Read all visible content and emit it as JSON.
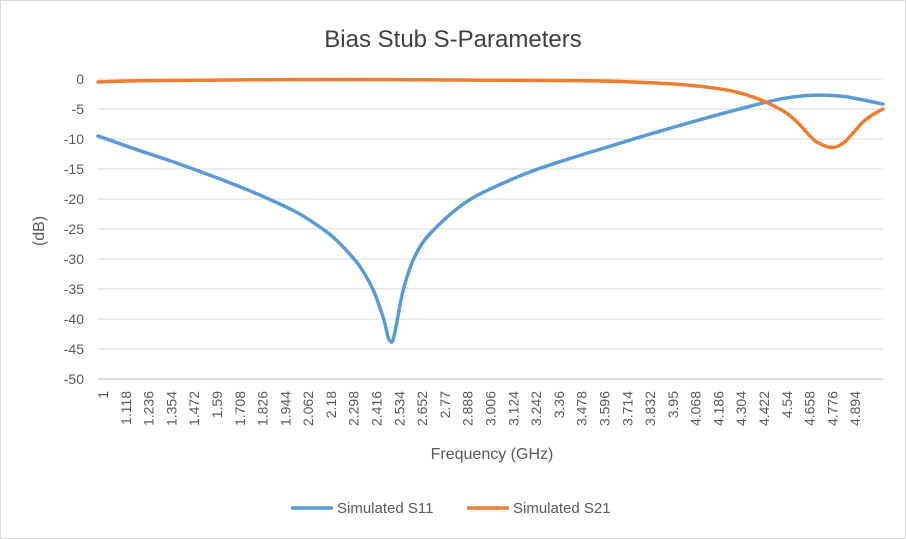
{
  "chart_data": {
    "type": "line",
    "title": "Bias Stub S-Parameters",
    "xlabel": "Frequency (GHz)",
    "ylabel": "(dB)",
    "ylim": [
      -50,
      0
    ],
    "y_ticks": [
      0,
      -5,
      -10,
      -15,
      -20,
      -25,
      -30,
      -35,
      -40,
      -45,
      -50
    ],
    "x_range": [
      1,
      5
    ],
    "x_tick_labels": [
      "1",
      "1.118",
      "1.236",
      "1.354",
      "1.472",
      "1.59",
      "1.708",
      "1.826",
      "1.944",
      "2.062",
      "2.18",
      "2.298",
      "2.416",
      "2.534",
      "2.652",
      "2.77",
      "2.888",
      "3.006",
      "3.124",
      "3.242",
      "3.36",
      "3.478",
      "3.596",
      "3.714",
      "3.832",
      "3.95",
      "4.068",
      "4.186",
      "4.304",
      "4.422",
      "4.54",
      "4.658",
      "4.776",
      "4.894"
    ],
    "grid": "horizontal",
    "legend_position": "bottom",
    "series": [
      {
        "name": "Simulated S11",
        "color": "#5b9bd5",
        "x": [
          1.0,
          1.2,
          1.4,
          1.6,
          1.8,
          2.0,
          2.1,
          2.2,
          2.3,
          2.35,
          2.4,
          2.43,
          2.46,
          2.48,
          2.5,
          2.52,
          2.54,
          2.56,
          2.6,
          2.65,
          2.7,
          2.8,
          2.9,
          3.0,
          3.2,
          3.4,
          3.6,
          3.8,
          4.0,
          4.2,
          4.4,
          4.5,
          4.6,
          4.7,
          4.8,
          4.9,
          5.0
        ],
        "y": [
          -9.5,
          -11.8,
          -14.0,
          -16.4,
          -19.0,
          -22.0,
          -24.0,
          -26.4,
          -29.8,
          -32.0,
          -35.0,
          -37.5,
          -40.5,
          -43.2,
          -43.7,
          -41.0,
          -37.5,
          -34.6,
          -30.6,
          -27.5,
          -25.5,
          -22.4,
          -20.0,
          -18.3,
          -15.5,
          -13.3,
          -11.3,
          -9.3,
          -7.4,
          -5.6,
          -3.9,
          -3.2,
          -2.8,
          -2.7,
          -2.9,
          -3.5,
          -4.2
        ]
      },
      {
        "name": "Simulated S21",
        "color": "#ed7d31",
        "x": [
          1.0,
          1.2,
          1.5,
          2.0,
          2.5,
          3.0,
          3.5,
          3.8,
          4.0,
          4.2,
          4.3,
          4.4,
          4.5,
          4.55,
          4.6,
          4.65,
          4.7,
          4.75,
          4.8,
          4.85,
          4.9,
          4.95,
          5.0
        ],
        "y": [
          -0.5,
          -0.3,
          -0.2,
          -0.1,
          -0.1,
          -0.2,
          -0.3,
          -0.6,
          -1.0,
          -1.8,
          -2.6,
          -3.8,
          -5.5,
          -6.8,
          -8.5,
          -10.2,
          -11.1,
          -11.4,
          -10.6,
          -8.9,
          -7.1,
          -5.9,
          -5.0
        ]
      }
    ]
  }
}
